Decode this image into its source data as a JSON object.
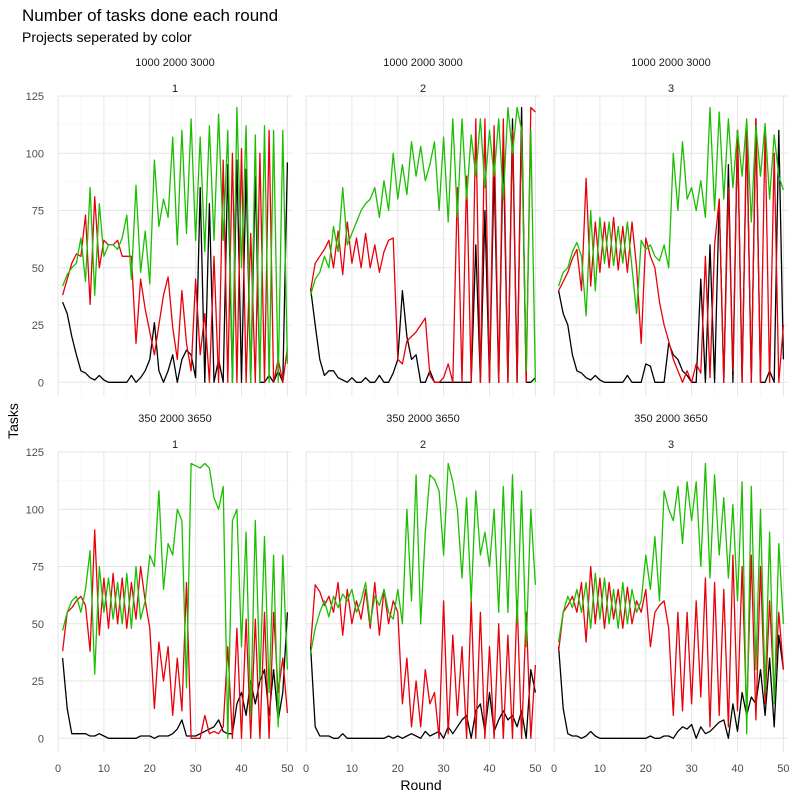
{
  "chart_data": {
    "type": "line",
    "title": "Number of tasks done each round",
    "subtitle": "Projects seperated by color",
    "xlabel": "Round",
    "ylabel": "Tasks",
    "xlim": [
      0,
      51
    ],
    "ylim": [
      -6,
      125
    ],
    "x_ticks": [
      0,
      10,
      20,
      30,
      40,
      50
    ],
    "y_ticks": [
      0,
      25,
      50,
      75,
      100,
      125
    ],
    "grid": true,
    "legend": "none",
    "series_colors": [
      "#000000",
      "#e8000b",
      "#1bbf00"
    ],
    "x": [
      1,
      2,
      3,
      4,
      5,
      6,
      7,
      8,
      9,
      10,
      11,
      12,
      13,
      14,
      15,
      16,
      17,
      18,
      19,
      20,
      21,
      22,
      23,
      24,
      25,
      26,
      27,
      28,
      29,
      30,
      31,
      32,
      33,
      34,
      35,
      36,
      37,
      38,
      39,
      40,
      41,
      42,
      43,
      44,
      45,
      46,
      47,
      48,
      49,
      50
    ],
    "panels": [
      {
        "strip": [
          "1000 2000 3000",
          "1"
        ],
        "series": [
          {
            "color": "#000000",
            "values": [
              35,
              30,
              20,
              12,
              5,
              4,
              2,
              1,
              3,
              1,
              0,
              0,
              0,
              0,
              0,
              3,
              0,
              2,
              5,
              10,
              26,
              5,
              0,
              5,
              12,
              0,
              10,
              14,
              12,
              2,
              85,
              0,
              78,
              0,
              10,
              0,
              95,
              0,
              97,
              0,
              93,
              0,
              90,
              0,
              0,
              3,
              0,
              5,
              0,
              96
            ]
          },
          {
            "color": "#e8000b",
            "values": [
              38,
              45,
              52,
              56,
              55,
              73,
              34,
              81,
              50,
              62,
              60,
              60,
              62,
              55,
              55,
              55,
              17,
              45,
              32,
              22,
              12,
              25,
              38,
              46,
              24,
              10,
              40,
              17,
              5,
              45,
              12,
              30,
              0,
              55,
              0,
              97,
              0,
              100,
              0,
              102,
              0,
              65,
              0,
              100,
              0,
              110,
              0,
              10,
              0,
              15
            ]
          },
          {
            "color": "#1bbf00",
            "values": [
              42,
              47,
              50,
              52,
              63,
              44,
              85,
              38,
              78,
              55,
              60,
              60,
              58,
              63,
              73,
              45,
              86,
              48,
              66,
              43,
              97,
              68,
              80,
              72,
              107,
              60,
              110,
              65,
              115,
              62,
              107,
              57,
              112,
              62,
              117,
              62,
              110,
              0,
              120,
              50,
              112,
              0,
              108,
              0,
              112,
              0,
              110,
              0,
              110,
              8
            ]
          }
        ]
      },
      {
        "strip": [
          "1000 2000 3000",
          "2"
        ],
        "series": [
          {
            "color": "#000000",
            "values": [
              41,
              25,
              10,
              3,
              5,
              5,
              2,
              1,
              0,
              2,
              0,
              0,
              2,
              0,
              0,
              3,
              0,
              0,
              4,
              10,
              40,
              20,
              10,
              12,
              0,
              0,
              5,
              0,
              0,
              0,
              0,
              0,
              0,
              0,
              0,
              0,
              60,
              0,
              75,
              0,
              93,
              0,
              102,
              0,
              115,
              0,
              120,
              0,
              0,
              2
            ]
          },
          {
            "color": "#e8000b",
            "values": [
              40,
              52,
              55,
              58,
              62,
              50,
              66,
              47,
              70,
              52,
              63,
              50,
              65,
              50,
              60,
              48,
              57,
              62,
              63,
              10,
              8,
              18,
              20,
              22,
              25,
              28,
              3,
              0,
              0,
              2,
              8,
              0,
              85,
              0,
              90,
              0,
              115,
              0,
              115,
              0,
              112,
              0,
              115,
              0,
              110,
              0,
              112,
              0,
              120,
              118
            ]
          },
          {
            "color": "#1bbf00",
            "values": [
              38,
              45,
              48,
              55,
              50,
              68,
              57,
              85,
              60,
              65,
              70,
              75,
              78,
              80,
              85,
              72,
              88,
              75,
              100,
              80,
              95,
              82,
              105,
              90,
              103,
              88,
              95,
              105,
              75,
              107,
              70,
              115,
              72,
              115,
              80,
              108,
              90,
              115,
              85,
              110,
              90,
              115,
              80,
              120,
              100,
              120,
              110,
              5,
              110,
              0
            ]
          }
        ]
      },
      {
        "strip": [
          "1000 2000 3000",
          "3"
        ],
        "series": [
          {
            "color": "#000000",
            "values": [
              40,
              30,
              25,
              12,
              5,
              4,
              2,
              1,
              3,
              1,
              0,
              0,
              0,
              0,
              0,
              3,
              0,
              0,
              0,
              8,
              7,
              0,
              0,
              0,
              17,
              12,
              10,
              5,
              3,
              0,
              0,
              45,
              0,
              60,
              0,
              80,
              0,
              95,
              0,
              110,
              0,
              110,
              0,
              115,
              0,
              0,
              5,
              0,
              110,
              10
            ]
          },
          {
            "color": "#e8000b",
            "values": [
              40,
              44,
              48,
              54,
              58,
              40,
              89,
              42,
              70,
              48,
              70,
              50,
              72,
              49,
              68,
              48,
              70,
              50,
              17,
              63,
              55,
              50,
              35,
              25,
              18,
              10,
              5,
              0,
              5,
              0,
              8,
              4,
              55,
              2,
              60,
              80,
              0,
              85,
              5,
              110,
              0,
              113,
              0,
              115,
              0,
              110,
              0,
              100,
              0,
              25
            ]
          },
          {
            "color": "#1bbf00",
            "values": [
              42,
              48,
              50,
              57,
              61,
              55,
              29,
              75,
              40,
              72,
              52,
              70,
              51,
              68,
              52,
              70,
              50,
              30,
              62,
              58,
              60,
              55,
              53,
              60,
              50,
              100,
              75,
              105,
              80,
              85,
              75,
              88,
              72,
              120,
              75,
              118,
              80,
              115,
              85,
              110,
              90,
              115,
              70,
              112,
              90,
              113,
              80,
              108,
              90,
              84
            ]
          }
        ]
      },
      {
        "strip": [
          "350 2000 3650",
          "1"
        ],
        "series": [
          {
            "color": "#000000",
            "values": [
              35,
              13,
              2,
              2,
              2,
              2,
              1,
              1,
              2,
              1,
              0,
              0,
              0,
              0,
              0,
              0,
              0,
              1,
              1,
              1,
              0,
              1,
              1,
              1,
              2,
              4,
              8,
              1,
              1,
              1,
              2,
              3,
              4,
              5,
              8,
              3,
              2,
              2,
              15,
              20,
              10,
              25,
              15,
              25,
              30,
              10,
              30,
              8,
              20,
              55
            ]
          },
          {
            "color": "#e8000b",
            "values": [
              38,
              55,
              57,
              60,
              62,
              58,
              38,
              91,
              45,
              70,
              48,
              72,
              50,
              70,
              48,
              68,
              52,
              75,
              60,
              48,
              13,
              42,
              25,
              40,
              10,
              35,
              12,
              68,
              0,
              0,
              0,
              10,
              2,
              3,
              2,
              5,
              40,
              0,
              48,
              0,
              52,
              0,
              52,
              0,
              55,
              0,
              55,
              20,
              35,
              11
            ]
          },
          {
            "color": "#1bbf00",
            "values": [
              47,
              55,
              60,
              62,
              55,
              65,
              82,
              28,
              75,
              55,
              70,
              52,
              68,
              50,
              72,
              48,
              75,
              52,
              60,
              80,
              75,
              108,
              65,
              85,
              80,
              100,
              95,
              22,
              120,
              119,
              118,
              120,
              118,
              105,
              100,
              110,
              0,
              95,
              100,
              40,
              90,
              10,
              95,
              25,
              88,
              20,
              80,
              5,
              80,
              30
            ]
          }
        ]
      },
      {
        "strip": [
          "350 2000 3650",
          "2"
        ],
        "series": [
          {
            "color": "#000000",
            "values": [
              40,
              5,
              1,
              1,
              1,
              0,
              0,
              2,
              0,
              0,
              0,
              0,
              0,
              0,
              0,
              0,
              0,
              1,
              0,
              1,
              0,
              1,
              2,
              1,
              0,
              3,
              1,
              2,
              3,
              0,
              5,
              2,
              5,
              8,
              10,
              0,
              12,
              15,
              3,
              20,
              3,
              8,
              12,
              8,
              10,
              5,
              12,
              0,
              30,
              20
            ]
          },
          {
            "color": "#e8000b",
            "values": [
              40,
              67,
              64,
              58,
              62,
              55,
              68,
              45,
              65,
              50,
              60,
              52,
              65,
              48,
              68,
              45,
              65,
              50,
              60,
              55,
              15,
              35,
              5,
              25,
              5,
              30,
              15,
              20,
              0,
              60,
              2,
              45,
              10,
              40,
              0,
              60,
              0,
              55,
              0,
              40,
              0,
              50,
              0,
              45,
              0,
              60,
              0,
              55,
              0,
              32
            ]
          },
          {
            "color": "#1bbf00",
            "values": [
              37,
              48,
              55,
              60,
              53,
              62,
              57,
              63,
              60,
              65,
              55,
              60,
              68,
              50,
              62,
              58,
              65,
              55,
              52,
              65,
              50,
              100,
              60,
              115,
              50,
              90,
              115,
              113,
              108,
              80,
              120,
              112,
              100,
              70,
              105,
              60,
              108,
              80,
              90,
              75,
              100,
              55,
              110,
              55,
              115,
              50,
              108,
              40,
              100,
              67
            ]
          }
        ]
      },
      {
        "strip": [
          "350 2000 3650",
          "3"
        ],
        "series": [
          {
            "color": "#000000",
            "values": [
              40,
              13,
              2,
              1,
              1,
              0,
              1,
              3,
              1,
              0,
              0,
              0,
              0,
              0,
              0,
              0,
              0,
              0,
              0,
              0,
              1,
              0,
              0,
              1,
              1,
              0,
              3,
              5,
              4,
              6,
              0,
              5,
              2,
              3,
              5,
              7,
              8,
              0,
              15,
              3,
              20,
              10,
              18,
              15,
              30,
              10,
              35,
              5,
              45,
              30
            ]
          },
          {
            "color": "#e8000b",
            "values": [
              38,
              55,
              58,
              62,
              55,
              68,
              42,
              75,
              50,
              70,
              48,
              68,
              52,
              65,
              48,
              66,
              50,
              60,
              55,
              65,
              40,
              55,
              58,
              60,
              48,
              10,
              55,
              12,
              55,
              15,
              60,
              18,
              70,
              5,
              68,
              10,
              65,
              5,
              80,
              12,
              75,
              10,
              80,
              8,
              75,
              15,
              60,
              20,
              55,
              30
            ]
          },
          {
            "color": "#1bbf00",
            "values": [
              42,
              55,
              62,
              57,
              65,
              55,
              68,
              48,
              72,
              52,
              70,
              50,
              65,
              48,
              68,
              50,
              65,
              55,
              60,
              80,
              65,
              88,
              60,
              108,
              100,
              95,
              110,
              85,
              112,
              95,
              112,
              75,
              120,
              70,
              115,
              80,
              105,
              70,
              102,
              60,
              112,
              2,
              110,
              30,
              100,
              20,
              90,
              15,
              85,
              50
            ]
          }
        ]
      }
    ]
  }
}
